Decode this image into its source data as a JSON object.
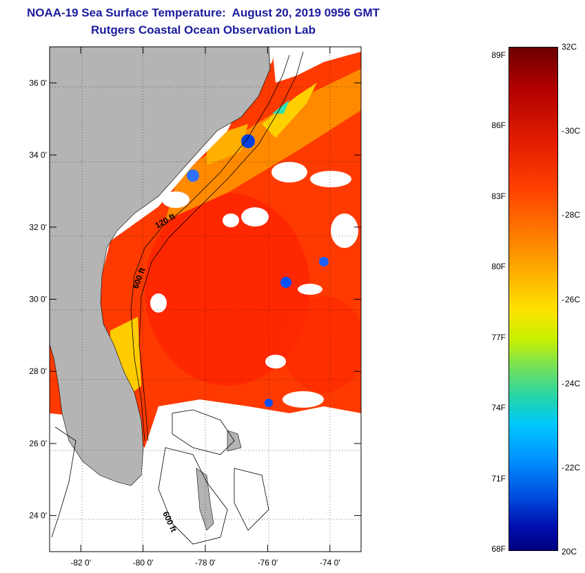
{
  "title": {
    "line1": "NOAA-19 Sea Surface Temperature:  August 20, 2019 0956 GMT",
    "line2": "Rutgers Coastal Ocean Observation Lab"
  },
  "map": {
    "lat_range": [
      23.0,
      37.0
    ],
    "lon_range": [
      -83.0,
      -73.0
    ],
    "lat_ticks": [
      {
        "value": 36,
        "label": "36 0'"
      },
      {
        "value": 34,
        "label": "34 0'"
      },
      {
        "value": 32,
        "label": "32 0'"
      },
      {
        "value": 30,
        "label": "30 0'"
      },
      {
        "value": 28,
        "label": "28 0'"
      },
      {
        "value": 26,
        "label": "26 0'"
      },
      {
        "value": 24,
        "label": "24 0'"
      }
    ],
    "lon_ticks": [
      {
        "value": -82,
        "label": "-82 0'"
      },
      {
        "value": -80,
        "label": "-80 0'"
      },
      {
        "value": -78,
        "label": "-78 0'"
      },
      {
        "value": -76,
        "label": "-76 0'"
      },
      {
        "value": -74,
        "label": "-74 0'"
      }
    ],
    "contour_labels": {
      "c120": "120 ft",
      "c600a": "600 ft",
      "c600b": "600 ft"
    },
    "colors": {
      "land": "#b4b4b4",
      "cloud": "#ffffff",
      "warm": "#ff3300",
      "frame": "#000000"
    }
  },
  "colorbar": {
    "min_c": 20,
    "max_c": 32,
    "fahrenheit": [
      "89F",
      "86F",
      "83F",
      "80F",
      "77F",
      "74F",
      "71F",
      "68F"
    ],
    "celsius_top": "32C",
    "celsius_bottom": "20C",
    "celsius_mid": [
      "30C",
      "28C",
      "26C",
      "24C",
      "22C"
    ]
  }
}
